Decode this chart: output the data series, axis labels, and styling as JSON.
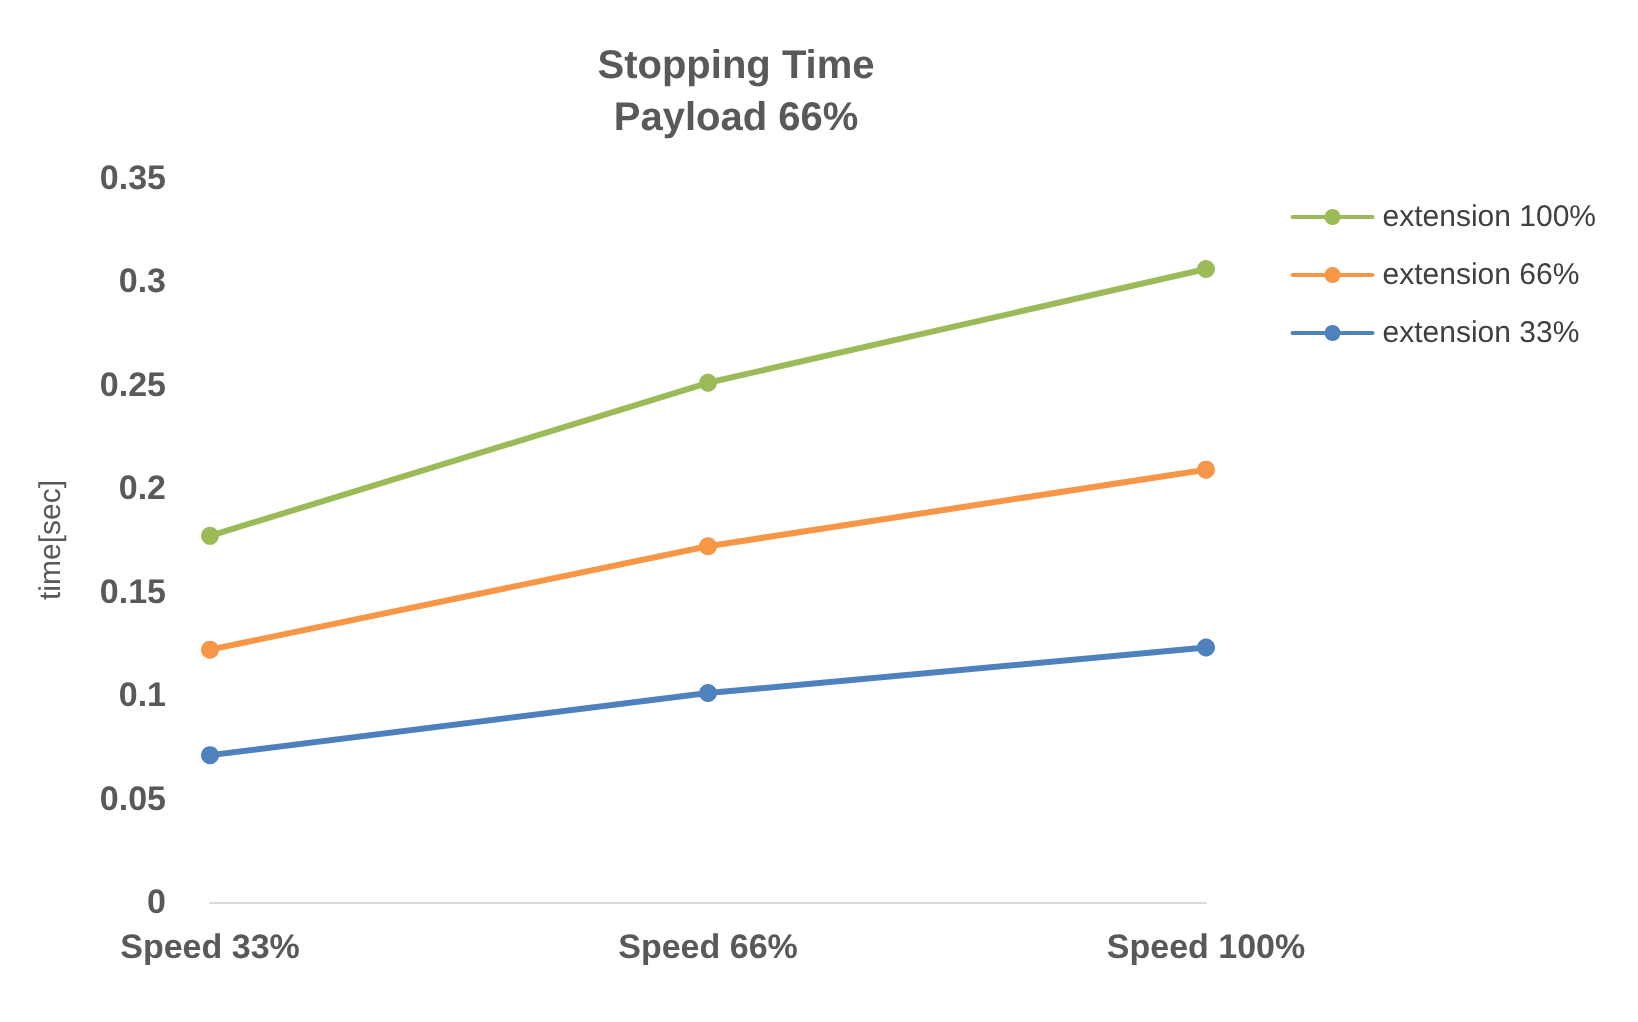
{
  "chart_data": {
    "type": "line",
    "title": "Stopping Time",
    "subtitle": "Payload 66%",
    "ylabel": "time[sec]",
    "categories": [
      "Speed 33%",
      "Speed 66%",
      "Speed 100%"
    ],
    "series": [
      {
        "name": "extension 100%",
        "color": "#9bbb59",
        "values": [
          0.177,
          0.251,
          0.306
        ]
      },
      {
        "name": "extension 66%",
        "color": "#f79646",
        "values": [
          0.122,
          0.172,
          0.209
        ]
      },
      {
        "name": "extension 33%",
        "color": "#4f81bd",
        "values": [
          0.071,
          0.101,
          0.123
        ]
      }
    ],
    "ylim": [
      0,
      0.35
    ],
    "yticks": [
      0,
      0.05,
      0.1,
      0.15,
      0.2,
      0.25,
      0.3,
      0.35
    ],
    "grid": false,
    "legend": "right",
    "marker": "circle",
    "line_style": "solid"
  }
}
